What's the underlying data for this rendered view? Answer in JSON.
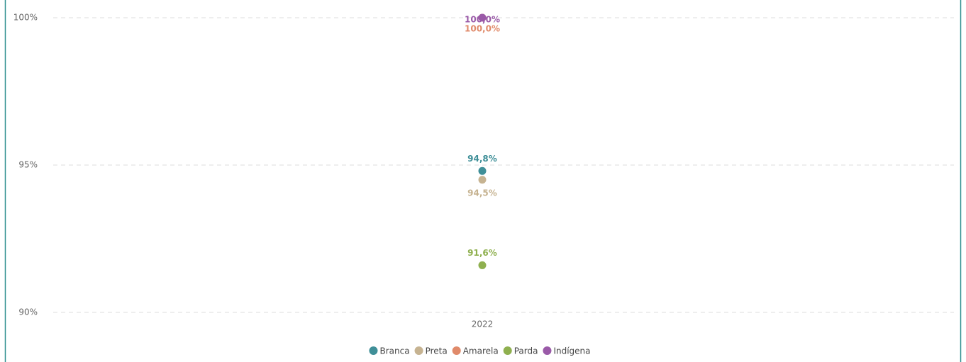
{
  "chart_data": {
    "type": "scatter",
    "categories": [
      "2022"
    ],
    "series": [
      {
        "name": "Branca",
        "color": "#3f8f98",
        "values": [
          94.8
        ],
        "value_labels": [
          "94,8%"
        ]
      },
      {
        "name": "Preta",
        "color": "#c6b391",
        "values": [
          94.5
        ],
        "value_labels": [
          "94,5%"
        ]
      },
      {
        "name": "Amarela",
        "color": "#e08a6a",
        "values": [
          100
        ],
        "value_labels": [
          "100,0%"
        ]
      },
      {
        "name": "Parda",
        "color": "#8fb04f",
        "values": [
          91.6
        ],
        "value_labels": [
          "91,6%"
        ]
      },
      {
        "name": "Indígena",
        "color": "#9a5aa8",
        "values": [
          100
        ],
        "value_labels": [
          "100,0%"
        ]
      }
    ],
    "ylim": [
      90,
      100.6
    ],
    "yticks": [
      {
        "value": 90,
        "label": "90%"
      },
      {
        "value": 95,
        "label": "95%"
      },
      {
        "value": 100,
        "label": "100%"
      }
    ],
    "grid": true
  }
}
